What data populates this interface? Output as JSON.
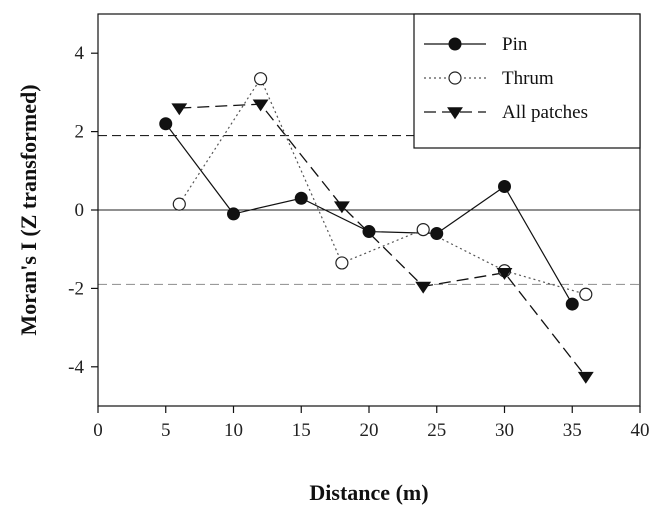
{
  "chart_data": {
    "type": "line",
    "title": "",
    "xlabel": "Distance (m)",
    "ylabel": "Moran's I (Z transformed)",
    "xlim": [
      0,
      40
    ],
    "ylim": [
      -5,
      5
    ],
    "x_ticks": [
      0,
      5,
      10,
      15,
      20,
      25,
      30,
      35,
      40
    ],
    "y_ticks": [
      -4,
      -2,
      0,
      2,
      4
    ],
    "grid": false,
    "legend_position": "top-right",
    "series": [
      {
        "name": "Pin",
        "marker": "filled-circle",
        "line_style": "solid",
        "x": [
          5,
          10,
          15,
          20,
          25,
          30,
          35
        ],
        "y": [
          2.2,
          -0.1,
          0.3,
          -0.55,
          -0.6,
          0.6,
          -2.4
        ]
      },
      {
        "name": "Thrum",
        "marker": "open-circle",
        "line_style": "dotted",
        "x": [
          6,
          12,
          18,
          24,
          30,
          36
        ],
        "y": [
          0.15,
          3.35,
          -1.35,
          -0.5,
          -1.55,
          -2.15
        ]
      },
      {
        "name": "All patches",
        "marker": "filled-triangle-down",
        "line_style": "dashed",
        "x": [
          6,
          12,
          18,
          24,
          30,
          36
        ],
        "y": [
          2.6,
          2.7,
          0.1,
          -1.95,
          -1.6,
          -4.25
        ]
      }
    ],
    "reference_lines": [
      {
        "y": 0,
        "style": "solid"
      },
      {
        "y": 1.9,
        "style": "dashed-dark"
      },
      {
        "y": -1.9,
        "style": "dashed-light"
      }
    ]
  }
}
